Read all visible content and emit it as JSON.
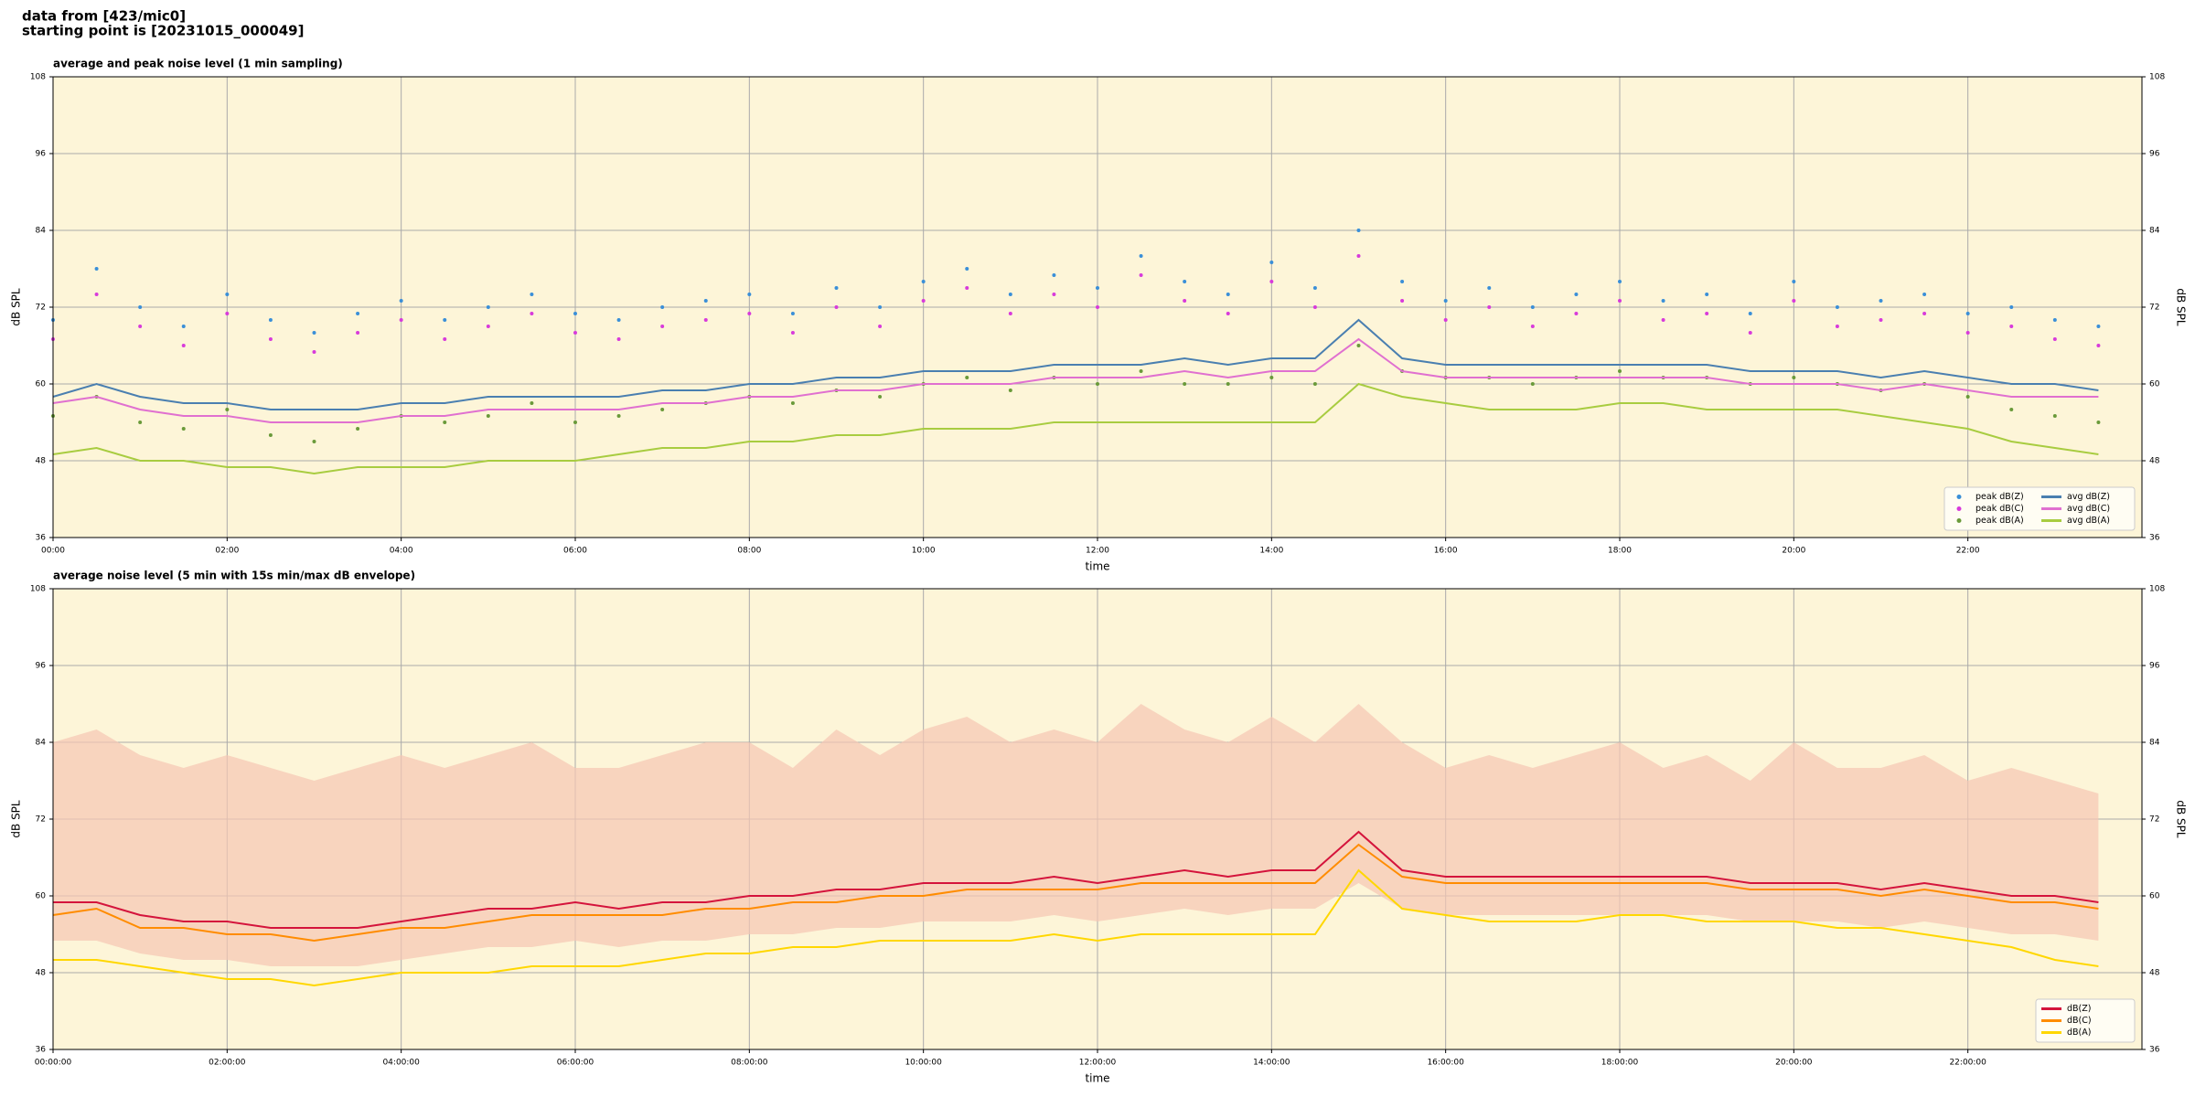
{
  "header": [
    "data from [423/mic0]",
    "starting point is [20231015_000049]"
  ],
  "chart_data": [
    {
      "type": "line",
      "title": "average and peak noise level (1 min sampling)",
      "xlabel": "time",
      "ylabel": "dB SPL",
      "facecolor": "#fdf5d8",
      "grid": true,
      "legend": "lower right",
      "legend_columns": 2,
      "x": [
        0,
        0.5,
        1,
        1.5,
        2,
        2.5,
        3,
        3.5,
        4,
        4.5,
        5,
        5.5,
        6,
        6.5,
        7,
        7.5,
        8,
        8.5,
        9,
        9.5,
        10,
        10.5,
        11,
        11.5,
        12,
        12.5,
        13,
        13.5,
        14,
        14.5,
        15,
        15.5,
        16,
        16.5,
        17,
        17.5,
        18,
        18.5,
        19,
        19.5,
        20,
        20.5,
        21,
        21.5,
        22,
        22.5,
        23,
        23.5
      ],
      "xlim": [
        0,
        24
      ],
      "xticks": [
        {
          "value": 0,
          "label": "00:00"
        },
        {
          "value": 2,
          "label": "02:00"
        },
        {
          "value": 4,
          "label": "04:00"
        },
        {
          "value": 6,
          "label": "06:00"
        },
        {
          "value": 8,
          "label": "08:00"
        },
        {
          "value": 10,
          "label": "10:00"
        },
        {
          "value": 12,
          "label": "12:00"
        },
        {
          "value": 14,
          "label": "14:00"
        },
        {
          "value": 16,
          "label": "16:00"
        },
        {
          "value": 18,
          "label": "18:00"
        },
        {
          "value": 20,
          "label": "20:00"
        },
        {
          "value": 22,
          "label": "22:00"
        }
      ],
      "ylim": [
        36,
        108
      ],
      "yticks": [
        36,
        48,
        60,
        72,
        84,
        96,
        108
      ],
      "series": [
        {
          "name": "peak dB(Z)",
          "style": "points",
          "color": "#3a8fd8",
          "values": [
            70,
            78,
            72,
            69,
            74,
            70,
            68,
            71,
            73,
            70,
            72,
            74,
            71,
            70,
            72,
            73,
            74,
            71,
            75,
            72,
            76,
            78,
            74,
            77,
            75,
            80,
            76,
            74,
            79,
            75,
            84,
            76,
            73,
            75,
            72,
            74,
            76,
            73,
            74,
            71,
            76,
            72,
            73,
            74,
            71,
            72,
            70,
            69
          ]
        },
        {
          "name": "peak dB(C)",
          "style": "points",
          "color": "#d83adb",
          "values": [
            67,
            74,
            69,
            66,
            71,
            67,
            65,
            68,
            70,
            67,
            69,
            71,
            68,
            67,
            69,
            70,
            71,
            68,
            72,
            69,
            73,
            75,
            71,
            74,
            72,
            77,
            73,
            71,
            76,
            72,
            80,
            73,
            70,
            72,
            69,
            71,
            73,
            70,
            71,
            68,
            73,
            69,
            70,
            71,
            68,
            69,
            67,
            66
          ]
        },
        {
          "name": "peak dB(A)",
          "style": "points",
          "color": "#6a9a3a",
          "values": [
            55,
            58,
            54,
            53,
            56,
            52,
            51,
            53,
            55,
            54,
            55,
            57,
            54,
            55,
            56,
            57,
            58,
            57,
            59,
            58,
            60,
            61,
            59,
            61,
            60,
            62,
            60,
            60,
            61,
            60,
            66,
            62,
            61,
            61,
            60,
            61,
            62,
            61,
            61,
            60,
            61,
            60,
            59,
            60,
            58,
            56,
            55,
            54
          ]
        },
        {
          "name": "avg dB(Z)",
          "style": "line",
          "color": "#4a7fb0",
          "values": [
            58,
            60,
            58,
            57,
            57,
            56,
            56,
            56,
            57,
            57,
            58,
            58,
            58,
            58,
            59,
            59,
            60,
            60,
            61,
            61,
            62,
            62,
            62,
            63,
            63,
            63,
            64,
            63,
            64,
            64,
            70,
            64,
            63,
            63,
            63,
            63,
            63,
            63,
            63,
            62,
            62,
            62,
            61,
            62,
            61,
            60,
            60,
            59
          ]
        },
        {
          "name": "avg dB(C)",
          "style": "line",
          "color": "#e070d0",
          "values": [
            57,
            58,
            56,
            55,
            55,
            54,
            54,
            54,
            55,
            55,
            56,
            56,
            56,
            56,
            57,
            57,
            58,
            58,
            59,
            59,
            60,
            60,
            60,
            61,
            61,
            61,
            62,
            61,
            62,
            62,
            67,
            62,
            61,
            61,
            61,
            61,
            61,
            61,
            61,
            60,
            60,
            60,
            59,
            60,
            59,
            58,
            58,
            58
          ]
        },
        {
          "name": "avg dB(A)",
          "style": "line",
          "color": "#a8cc40",
          "values": [
            49,
            50,
            48,
            48,
            47,
            47,
            46,
            47,
            47,
            47,
            48,
            48,
            48,
            49,
            50,
            50,
            51,
            51,
            52,
            52,
            53,
            53,
            53,
            54,
            54,
            54,
            54,
            54,
            54,
            54,
            60,
            58,
            57,
            56,
            56,
            56,
            57,
            57,
            56,
            56,
            56,
            56,
            55,
            54,
            53,
            51,
            50,
            49
          ]
        }
      ]
    },
    {
      "type": "line",
      "title": "average noise level (5 min with 15s min/max dB envelope)",
      "xlabel": "time",
      "ylabel": "dB SPL",
      "facecolor": "#fdf5d8",
      "grid": true,
      "legend": "lower right",
      "legend_columns": 1,
      "x": [
        0,
        0.5,
        1,
        1.5,
        2,
        2.5,
        3,
        3.5,
        4,
        4.5,
        5,
        5.5,
        6,
        6.5,
        7,
        7.5,
        8,
        8.5,
        9,
        9.5,
        10,
        10.5,
        11,
        11.5,
        12,
        12.5,
        13,
        13.5,
        14,
        14.5,
        15,
        15.5,
        16,
        16.5,
        17,
        17.5,
        18,
        18.5,
        19,
        19.5,
        20,
        20.5,
        21,
        21.5,
        22,
        22.5,
        23,
        23.5
      ],
      "xlim": [
        0,
        24
      ],
      "xticks": [
        {
          "value": 0,
          "label": "00:00:00"
        },
        {
          "value": 2,
          "label": "02:00:00"
        },
        {
          "value": 4,
          "label": "04:00:00"
        },
        {
          "value": 6,
          "label": "06:00:00"
        },
        {
          "value": 8,
          "label": "08:00:00"
        },
        {
          "value": 10,
          "label": "10:00:00"
        },
        {
          "value": 12,
          "label": "12:00:00"
        },
        {
          "value": 14,
          "label": "14:00:00"
        },
        {
          "value": 16,
          "label": "16:00:00"
        },
        {
          "value": 18,
          "label": "18:00:00"
        },
        {
          "value": 20,
          "label": "20:00:00"
        },
        {
          "value": 22,
          "label": "22:00:00"
        }
      ],
      "ylim": [
        36,
        108
      ],
      "yticks": [
        36,
        48,
        60,
        72,
        84,
        96,
        108
      ],
      "envelope": {
        "color": "#f5c6b4",
        "low": [
          53,
          53,
          51,
          50,
          50,
          49,
          49,
          49,
          50,
          51,
          52,
          52,
          53,
          52,
          53,
          53,
          54,
          54,
          55,
          55,
          56,
          56,
          56,
          57,
          56,
          57,
          58,
          57,
          58,
          58,
          62,
          58,
          57,
          57,
          57,
          57,
          57,
          57,
          57,
          56,
          56,
          56,
          55,
          56,
          55,
          54,
          54,
          53
        ],
        "high": [
          84,
          86,
          82,
          80,
          82,
          80,
          78,
          80,
          82,
          80,
          82,
          84,
          80,
          80,
          82,
          84,
          84,
          80,
          86,
          82,
          86,
          88,
          84,
          86,
          84,
          90,
          86,
          84,
          88,
          84,
          90,
          84,
          80,
          82,
          80,
          82,
          84,
          80,
          82,
          78,
          84,
          80,
          80,
          82,
          78,
          80,
          78,
          76
        ]
      },
      "series": [
        {
          "name": "dB(Z)",
          "style": "line",
          "color": "#d4143c",
          "values": [
            59,
            59,
            57,
            56,
            56,
            55,
            55,
            55,
            56,
            57,
            58,
            58,
            59,
            58,
            59,
            59,
            60,
            60,
            61,
            61,
            62,
            62,
            62,
            63,
            62,
            63,
            64,
            63,
            64,
            64,
            70,
            64,
            63,
            63,
            63,
            63,
            63,
            63,
            63,
            62,
            62,
            62,
            61,
            62,
            61,
            60,
            60,
            59
          ]
        },
        {
          "name": "dB(C)",
          "style": "line",
          "color": "#ff8c00",
          "values": [
            57,
            58,
            55,
            55,
            54,
            54,
            53,
            54,
            55,
            55,
            56,
            57,
            57,
            57,
            57,
            58,
            58,
            59,
            59,
            60,
            60,
            61,
            61,
            61,
            61,
            62,
            62,
            62,
            62,
            62,
            68,
            63,
            62,
            62,
            62,
            62,
            62,
            62,
            62,
            61,
            61,
            61,
            60,
            61,
            60,
            59,
            59,
            58
          ]
        },
        {
          "name": "dB(A)",
          "style": "line",
          "color": "#ffd700",
          "values": [
            50,
            50,
            49,
            48,
            47,
            47,
            46,
            47,
            48,
            48,
            48,
            49,
            49,
            49,
            50,
            51,
            51,
            52,
            52,
            53,
            53,
            53,
            53,
            54,
            53,
            54,
            54,
            54,
            54,
            54,
            64,
            58,
            57,
            56,
            56,
            56,
            57,
            57,
            56,
            56,
            56,
            55,
            55,
            54,
            53,
            52,
            50,
            49
          ]
        }
      ]
    }
  ]
}
